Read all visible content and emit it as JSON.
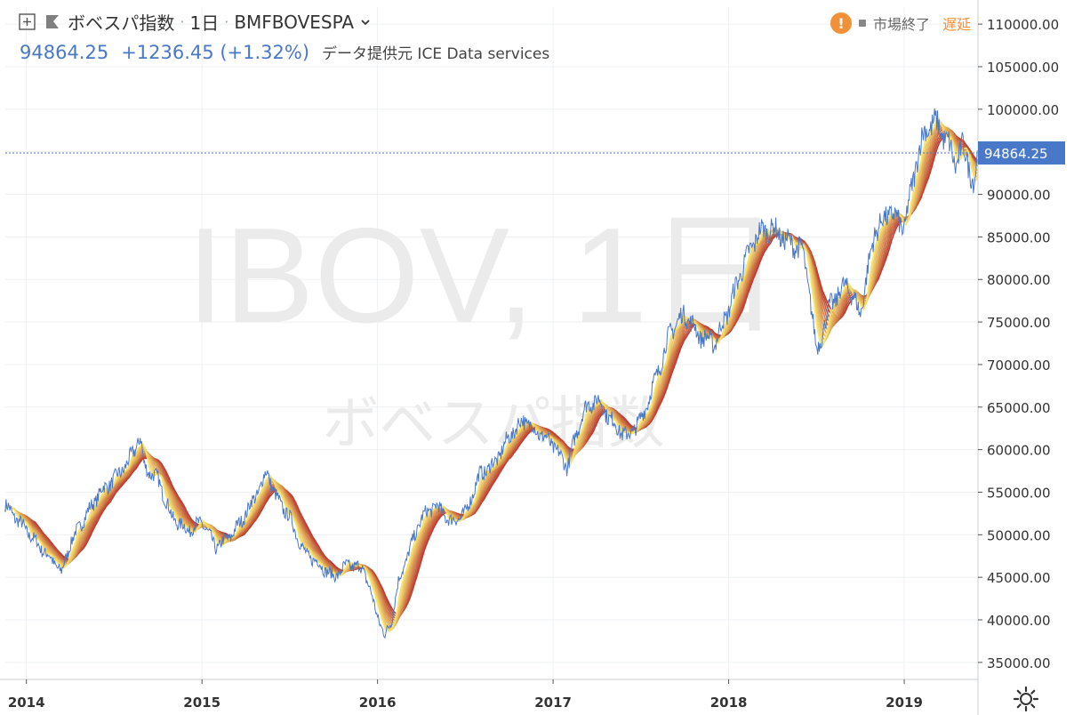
{
  "header": {
    "title": "ボベスパ指数",
    "interval": "1日",
    "symbol": "BMFBOVESPA",
    "separator": "·",
    "price": "94864.25",
    "change": "+1236.45",
    "change_pct": "(+1.32%)",
    "provider": "データ提供元 ICE Data services",
    "market_status": "市場終了",
    "delay_label": "遅延",
    "warn_symbol": "!",
    "icons": [
      "add-symbol-icon",
      "flag-icon",
      "chevron-down-icon",
      "warning-icon",
      "status-dot-icon",
      "settings-gear-icon"
    ]
  },
  "watermark": {
    "line1": "IBOV, 1日",
    "line2": "ボベスパ指数"
  },
  "colors": {
    "price_line": "#4a78c9",
    "ribbon_fast": "#f5e36a",
    "ribbon_slow": "#b8322a",
    "last_price_label": "#4a78c9",
    "grid": "#eef0f3",
    "warning": "#f0913a"
  },
  "chart_data": {
    "type": "line",
    "last_price": 94864.25,
    "ylim": [
      33000,
      112000
    ],
    "xlim": [
      2013.88,
      2019.42
    ],
    "y_ticks": [
      35000,
      40000,
      45000,
      50000,
      55000,
      60000,
      65000,
      70000,
      75000,
      80000,
      85000,
      90000,
      95000,
      100000,
      105000,
      110000
    ],
    "y_tick_labels": [
      "35000.00",
      "40000.00",
      "45000.00",
      "50000.00",
      "55000.00",
      "60000.00",
      "65000.00",
      "70000.00",
      "75000.00",
      "80000.00",
      "85000.00",
      "90000.00",
      "95000.00",
      "100000.00",
      "105000.00",
      "110000.00"
    ],
    "x_ticks": [
      2014,
      2015,
      2016,
      2017,
      2018,
      2019
    ],
    "x_tick_labels": [
      "2014",
      "2015",
      "2016",
      "2017",
      "2018",
      "2019"
    ],
    "grid": true,
    "series": [
      {
        "x": [
          2013.88,
          2014.0,
          2014.08,
          2014.17,
          2014.2,
          2014.25,
          2014.33,
          2014.42,
          2014.5,
          2014.58,
          2014.65,
          2014.67,
          2014.75,
          2014.83,
          2014.92,
          2015.0,
          2015.08,
          2015.17,
          2015.25,
          2015.33,
          2015.37,
          2015.42,
          2015.5,
          2015.58,
          2015.67,
          2015.75,
          2015.83,
          2015.92,
          2016.0,
          2016.04,
          2016.08,
          2016.12,
          2016.17,
          2016.25,
          2016.33,
          2016.42,
          2016.5,
          2016.58,
          2016.67,
          2016.75,
          2016.83,
          2016.92,
          2017.0,
          2017.08,
          2017.17,
          2017.25,
          2017.33,
          2017.37,
          2017.42,
          2017.5,
          2017.58,
          2017.67,
          2017.75,
          2017.83,
          2017.92,
          2018.0,
          2018.08,
          2018.17,
          2018.25,
          2018.33,
          2018.42,
          2018.46,
          2018.5,
          2018.58,
          2018.67,
          2018.75,
          2018.83,
          2018.92,
          2019.0,
          2019.08,
          2019.12,
          2019.17,
          2019.21,
          2019.25,
          2019.29,
          2019.33,
          2019.36,
          2019.4,
          2019.42
        ],
        "values": [
          53500,
          50500,
          48500,
          46500,
          45500,
          49000,
          52000,
          55000,
          56500,
          58500,
          61500,
          58000,
          56500,
          52000,
          50500,
          51500,
          48500,
          50000,
          52500,
          55500,
          57500,
          54500,
          52000,
          48000,
          46500,
          45000,
          46500,
          46000,
          40500,
          38000,
          40000,
          44500,
          47500,
          52000,
          53500,
          51500,
          52500,
          57000,
          58500,
          61500,
          63500,
          62000,
          60500,
          58000,
          64500,
          66000,
          63500,
          62500,
          61500,
          63500,
          68000,
          74000,
          76000,
          73500,
          72500,
          76500,
          81500,
          85500,
          86000,
          84500,
          83500,
          78500,
          71500,
          77000,
          79500,
          76000,
          85500,
          88000,
          86000,
          95000,
          97500,
          98500,
          97500,
          96000,
          93500,
          95500,
          94000,
          91000,
          94864.25
        ]
      }
    ]
  }
}
